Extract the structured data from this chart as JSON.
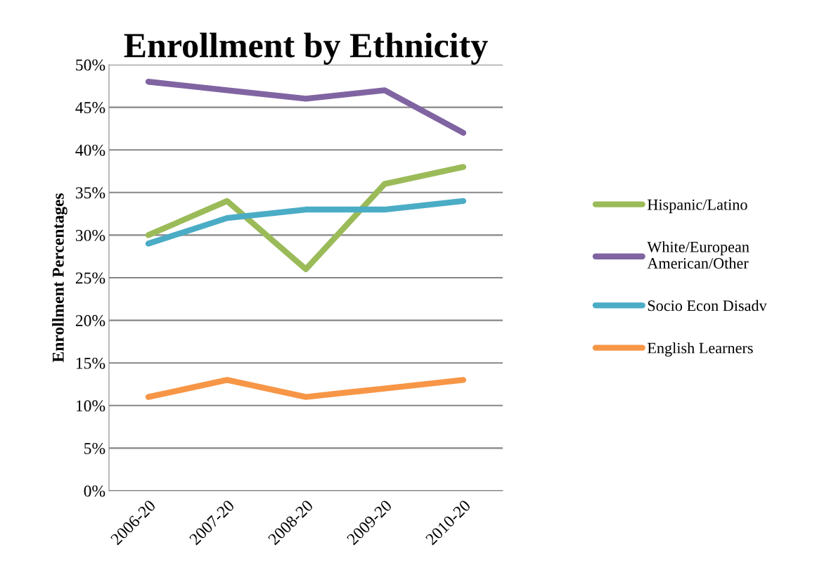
{
  "chart_data": {
    "type": "line",
    "title": "Enrollment by Ethnicity",
    "ylabel": "Enrollment Percentages",
    "categories": [
      "2006-20",
      "2007-20",
      "2008-20",
      "2009-20",
      "2010-20"
    ],
    "series": [
      {
        "name": "Hispanic/Latino",
        "color": "#9bbb59",
        "values": [
          30,
          34,
          26,
          36,
          38
        ]
      },
      {
        "name": "White/European American/Other",
        "color": "#8064a2",
        "values": [
          48,
          47,
          46,
          47,
          42
        ]
      },
      {
        "name": "Socio Econ Disadv",
        "color": "#4bacc6",
        "values": [
          29,
          32,
          33,
          33,
          34
        ]
      },
      {
        "name": "English Learners",
        "color": "#f79646",
        "values": [
          11,
          13,
          11,
          12,
          13
        ]
      }
    ],
    "ylim": [
      0,
      50
    ],
    "yticks": [
      {
        "value": 0,
        "label": "0%"
      },
      {
        "value": 5,
        "label": "5%"
      },
      {
        "value": 10,
        "label": "10%"
      },
      {
        "value": 15,
        "label": "15%"
      },
      {
        "value": 20,
        "label": "20%"
      },
      {
        "value": 25,
        "label": "25%"
      },
      {
        "value": 30,
        "label": "30%"
      },
      {
        "value": 35,
        "label": "35%"
      },
      {
        "value": 40,
        "label": "40%"
      },
      {
        "value": 45,
        "label": "45%"
      },
      {
        "value": 50,
        "label": "50%"
      }
    ],
    "grid": "y",
    "legend": "right",
    "marker": "none",
    "line_style": "solid"
  }
}
